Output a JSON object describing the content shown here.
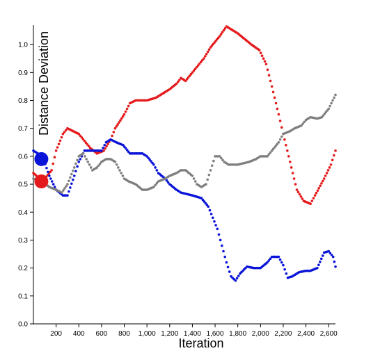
{
  "chart_data": {
    "type": "scatter",
    "xlabel": "Iteration",
    "ylabel": "Distance Deviation",
    "xlim": [
      0,
      2660
    ],
    "ylim": [
      0,
      1.07
    ],
    "xticks": [
      200,
      400,
      600,
      800,
      1000,
      1200,
      1400,
      1600,
      1800,
      2000,
      2200,
      2400,
      2600
    ],
    "xtick_labels": [
      "200",
      "400",
      "600",
      "800",
      "1,000",
      "1,200",
      "1,400",
      "1,600",
      "1,800",
      "2,000",
      "2,200",
      "2,400",
      "2,600"
    ],
    "yticks": [
      0.0,
      0.1,
      0.2,
      0.3,
      0.4,
      0.5,
      0.6,
      0.7,
      0.8,
      0.9,
      1.0
    ],
    "ytick_labels": [
      "0.0",
      "0.1",
      "0.2",
      "0.3",
      "0.4",
      "0.5",
      "0.6",
      "0.7",
      "0.8",
      "0.9",
      "1.0"
    ],
    "grid": false,
    "legend": "none",
    "series": [
      {
        "color": "#e41a1c",
        "x": [
          0,
          80,
          160,
          200,
          260,
          300,
          400,
          500,
          560,
          620,
          680,
          720,
          800,
          850,
          900,
          1000,
          1080,
          1160,
          1200,
          1260,
          1300,
          1340,
          1400,
          1500,
          1560,
          1640,
          1700,
          1760,
          1800,
          1860,
          1920,
          1990,
          2050,
          2100,
          2160,
          2200,
          2260,
          2320,
          2380,
          2440,
          2480,
          2560,
          2620,
          2660
        ],
        "y": [
          0.54,
          0.51,
          0.55,
          0.62,
          0.68,
          0.7,
          0.68,
          0.63,
          0.61,
          0.62,
          0.66,
          0.7,
          0.75,
          0.79,
          0.8,
          0.8,
          0.81,
          0.83,
          0.84,
          0.86,
          0.88,
          0.87,
          0.9,
          0.95,
          0.99,
          1.03,
          1.065,
          1.05,
          1.04,
          1.02,
          1.0,
          0.98,
          0.93,
          0.85,
          0.75,
          0.68,
          0.58,
          0.48,
          0.44,
          0.43,
          0.46,
          0.52,
          0.57,
          0.62
        ]
      },
      {
        "color": "#0a14d8",
        "x": [
          0,
          80,
          140,
          200,
          260,
          300,
          360,
          400,
          450,
          500,
          560,
          600,
          640,
          680,
          730,
          790,
          850,
          900,
          960,
          1000,
          1060,
          1100,
          1160,
          1200,
          1260,
          1300,
          1400,
          1480,
          1540,
          1580,
          1620,
          1660,
          1700,
          1740,
          1780,
          1820,
          1880,
          1940,
          2000,
          2060,
          2100,
          2160,
          2200,
          2240,
          2280,
          2340,
          2400,
          2440,
          2500,
          2560,
          2600,
          2640,
          2660
        ],
        "y": [
          0.62,
          0.6,
          0.53,
          0.48,
          0.46,
          0.46,
          0.53,
          0.58,
          0.62,
          0.62,
          0.62,
          0.62,
          0.65,
          0.66,
          0.65,
          0.64,
          0.61,
          0.61,
          0.61,
          0.6,
          0.57,
          0.54,
          0.52,
          0.5,
          0.48,
          0.47,
          0.46,
          0.45,
          0.42,
          0.38,
          0.34,
          0.28,
          0.22,
          0.17,
          0.155,
          0.18,
          0.205,
          0.2,
          0.2,
          0.22,
          0.24,
          0.24,
          0.21,
          0.165,
          0.17,
          0.185,
          0.19,
          0.19,
          0.2,
          0.255,
          0.26,
          0.24,
          0.205
        ]
      },
      {
        "color": "#7f7f7f",
        "x": [
          0,
          80,
          140,
          200,
          250,
          300,
          360,
          400,
          440,
          480,
          520,
          560,
          600,
          640,
          680,
          720,
          760,
          800,
          840,
          900,
          960,
          1000,
          1060,
          1100,
          1160,
          1200,
          1260,
          1300,
          1340,
          1400,
          1440,
          1480,
          1520,
          1560,
          1600,
          1640,
          1680,
          1720,
          1760,
          1800,
          1900,
          1960,
          2000,
          2060,
          2100,
          2160,
          2200,
          2260,
          2300,
          2360,
          2400,
          2440,
          2500,
          2540,
          2600,
          2660
        ],
        "y": [
          0.52,
          0.51,
          0.49,
          0.48,
          0.47,
          0.5,
          0.56,
          0.6,
          0.61,
          0.58,
          0.55,
          0.56,
          0.58,
          0.59,
          0.59,
          0.58,
          0.55,
          0.52,
          0.51,
          0.5,
          0.48,
          0.48,
          0.49,
          0.51,
          0.52,
          0.53,
          0.54,
          0.55,
          0.55,
          0.53,
          0.5,
          0.49,
          0.5,
          0.55,
          0.6,
          0.6,
          0.58,
          0.57,
          0.57,
          0.57,
          0.58,
          0.59,
          0.6,
          0.6,
          0.62,
          0.65,
          0.68,
          0.69,
          0.7,
          0.71,
          0.73,
          0.74,
          0.735,
          0.74,
          0.77,
          0.82
        ]
      }
    ],
    "highlight_markers": [
      {
        "color": "#0a14d8",
        "x": 70,
        "y": 0.59
      },
      {
        "color": "#e41a1c",
        "x": 70,
        "y": 0.51
      }
    ]
  }
}
